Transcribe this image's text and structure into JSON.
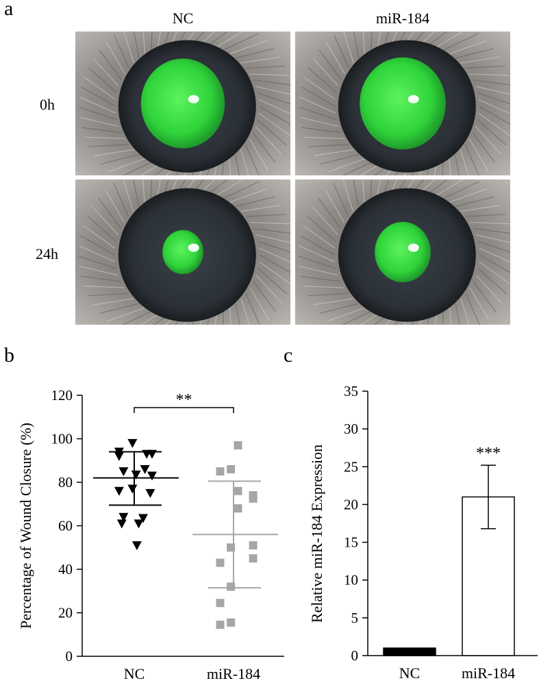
{
  "panel_a": {
    "letter": "a",
    "columns": [
      "NC",
      "miR-184"
    ],
    "rows": [
      "0h",
      "24h"
    ],
    "images": [
      {
        "name": "nc-0h",
        "stain": "#2fd43a",
        "stain_size": 0.78
      },
      {
        "name": "mir184-0h",
        "stain": "#2fd43a",
        "stain_size": 0.8
      },
      {
        "name": "nc-24h",
        "stain": "#2fd43a",
        "stain_size": 0.38
      },
      {
        "name": "mir184-24h",
        "stain": "#2fd43a",
        "stain_size": 0.52
      }
    ]
  },
  "chart_data": [
    {
      "panel": "b",
      "type": "scatter",
      "ylabel": "Percentage of Wound Closure (%)",
      "ylim": [
        0,
        120
      ],
      "yticks": [
        0,
        20,
        40,
        60,
        80,
        100,
        120
      ],
      "categories": [
        "NC",
        "miR-184"
      ],
      "significance": "**",
      "series": [
        {
          "category": "NC",
          "marker": "triangle-down",
          "color": "#000000",
          "mean": 82,
          "sd_upper": 94,
          "sd_lower": 69.5,
          "points": [
            {
              "x": -0.17,
              "y": 94
            },
            {
              "x": -0.17,
              "y": 92
            },
            {
              "x": -0.02,
              "y": 98
            },
            {
              "x": 0.14,
              "y": 93
            },
            {
              "x": 0.2,
              "y": 93
            },
            {
              "x": -0.12,
              "y": 85
            },
            {
              "x": 0.02,
              "y": 83.5
            },
            {
              "x": 0.12,
              "y": 86
            },
            {
              "x": 0.2,
              "y": 83
            },
            {
              "x": -0.17,
              "y": 76
            },
            {
              "x": -0.02,
              "y": 77
            },
            {
              "x": 0.18,
              "y": 75
            },
            {
              "x": -0.12,
              "y": 64
            },
            {
              "x": 0.1,
              "y": 63.5
            },
            {
              "x": -0.14,
              "y": 61
            },
            {
              "x": 0.05,
              "y": 61
            },
            {
              "x": 0.03,
              "y": 51
            }
          ]
        },
        {
          "category": "miR-184",
          "marker": "square",
          "color": "#a6a6a6",
          "mean": 56,
          "sd_upper": 80.5,
          "sd_lower": 31.5,
          "points": [
            {
              "x": -0.15,
              "y": 85
            },
            {
              "x": -0.03,
              "y": 86
            },
            {
              "x": 0.05,
              "y": 76
            },
            {
              "x": 0.05,
              "y": 97
            },
            {
              "x": 0.22,
              "y": 74
            },
            {
              "x": 0.22,
              "y": 72.5
            },
            {
              "x": 0.05,
              "y": 68
            },
            {
              "x": -0.03,
              "y": 50
            },
            {
              "x": 0.22,
              "y": 51
            },
            {
              "x": 0.22,
              "y": 45
            },
            {
              "x": -0.15,
              "y": 43
            },
            {
              "x": -0.03,
              "y": 32
            },
            {
              "x": -0.15,
              "y": 24.5
            },
            {
              "x": -0.15,
              "y": 14.5
            },
            {
              "x": -0.03,
              "y": 15.5
            }
          ]
        }
      ]
    },
    {
      "panel": "c",
      "type": "bar",
      "ylabel": "Relative miR-184 Expression",
      "ylim": [
        0,
        35
      ],
      "yticks": [
        0,
        5,
        10,
        15,
        20,
        25,
        30,
        35
      ],
      "categories": [
        "NC",
        "miR-184"
      ],
      "values": [
        1,
        21
      ],
      "error": [
        0.1,
        4.2
      ],
      "colors": [
        "#000000",
        "#ffffff"
      ],
      "significance": [
        "",
        "***"
      ]
    }
  ]
}
